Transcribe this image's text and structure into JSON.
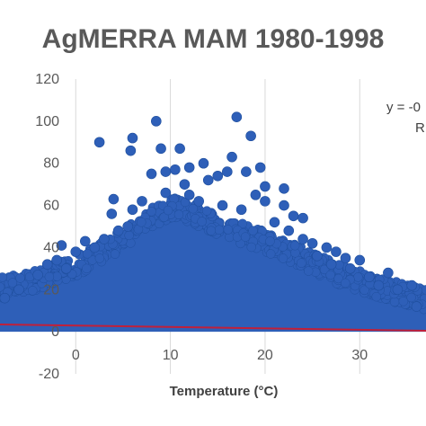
{
  "chart_data": {
    "type": "scatter",
    "title": "AgMERRA MAM 1980-1998",
    "xlabel": "Temperature (°C)",
    "ylabel": "",
    "xlim": [
      -8,
      37
    ],
    "ylim": [
      -20,
      120
    ],
    "x_ticks": [
      "0",
      "10",
      "20",
      "30"
    ],
    "x_tick_values": [
      0,
      10,
      20,
      30
    ],
    "y_ticks": [
      "120",
      "100",
      "80",
      "60",
      "40",
      "20",
      "0",
      "-20"
    ],
    "y_tick_values": [
      120,
      100,
      80,
      60,
      40,
      20,
      0,
      -20
    ],
    "grid": "vertical",
    "trendline": {
      "x": [
        -8,
        37
      ],
      "y": [
        3.5,
        0.5
      ],
      "color": "#c0203a"
    },
    "equation_text": "y = -0",
    "r2_text": "R",
    "series": [
      {
        "color": "#2e5fb8",
        "points": [
          [
            8.5,
            100
          ],
          [
            17,
            102
          ],
          [
            2.5,
            90
          ],
          [
            18.5,
            93
          ],
          [
            6,
            92
          ],
          [
            5.8,
            86
          ],
          [
            11,
            87
          ],
          [
            9,
            87
          ],
          [
            16.5,
            83
          ],
          [
            13.5,
            80
          ],
          [
            12,
            78
          ],
          [
            8,
            75
          ],
          [
            10.5,
            77
          ],
          [
            9.5,
            76
          ],
          [
            19.5,
            78
          ],
          [
            18,
            76
          ],
          [
            15,
            74
          ],
          [
            16,
            76
          ],
          [
            20,
            69
          ],
          [
            22,
            68
          ],
          [
            14,
            72
          ],
          [
            11.5,
            70
          ],
          [
            4,
            63
          ],
          [
            7,
            62
          ],
          [
            9.5,
            66
          ],
          [
            12,
            65
          ],
          [
            19,
            65
          ],
          [
            20,
            62
          ],
          [
            22,
            60
          ],
          [
            3.8,
            56
          ],
          [
            23,
            55
          ],
          [
            24,
            54
          ],
          [
            6,
            58
          ],
          [
            13,
            62
          ],
          [
            15.5,
            60
          ],
          [
            17.5,
            58
          ],
          [
            -1.5,
            41
          ],
          [
            0,
            38
          ],
          [
            1,
            43
          ],
          [
            25,
            42
          ],
          [
            26.5,
            40
          ],
          [
            27.5,
            38
          ],
          [
            28.5,
            35
          ],
          [
            30,
            34
          ],
          [
            33,
            28
          ],
          [
            35.5,
            22
          ],
          [
            29,
            30
          ],
          [
            25.5,
            36
          ],
          [
            2,
            40
          ],
          [
            3,
            44
          ],
          [
            4.5,
            48
          ],
          [
            5.5,
            50
          ],
          [
            -3,
            32
          ],
          [
            -6,
            20
          ],
          [
            -7.5,
            16
          ],
          [
            32,
            22
          ],
          [
            34,
            20
          ],
          [
            36,
            12
          ],
          [
            22.5,
            48
          ],
          [
            21,
            52
          ],
          [
            -2,
            34
          ],
          [
            -4,
            27
          ],
          [
            -1,
            30
          ],
          [
            31,
            26
          ],
          [
            27,
            32
          ],
          [
            24,
            44
          ]
        ]
      }
    ],
    "density_band": {
      "x": [
        -8,
        -4,
        0,
        4,
        8,
        10,
        12,
        16,
        20,
        24,
        28,
        32,
        37
      ],
      "upper": [
        22,
        26,
        32,
        42,
        55,
        60,
        58,
        50,
        44,
        36,
        28,
        22,
        16
      ],
      "lower": [
        0,
        0,
        0,
        0,
        0,
        0,
        0,
        0,
        0,
        0,
        0,
        0,
        0
      ]
    }
  }
}
